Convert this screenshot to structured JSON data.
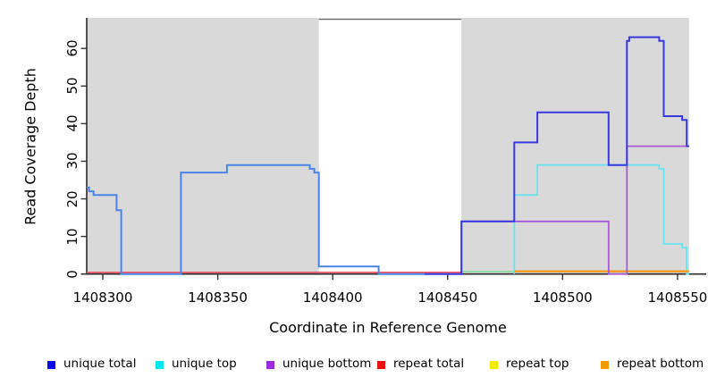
{
  "chart_data": {
    "type": "line",
    "subtype": "step",
    "title": "",
    "xlabel": "Coordinate in Reference Genome",
    "ylabel": "Read Coverage Depth",
    "xlim": [
      1408293,
      1408555
    ],
    "ylim": [
      0,
      67
    ],
    "x_ticks": [
      1408300,
      1408350,
      1408400,
      1408450,
      1408500,
      1408550
    ],
    "y_ticks": [
      0,
      10,
      20,
      30,
      40,
      50,
      60
    ],
    "grid": false,
    "legend_position": "bottom",
    "shading": {
      "color": "#d9d9d9",
      "regions": [
        {
          "from": 1408293,
          "to": 1408394
        },
        {
          "from": 1408456,
          "to": 1408555
        }
      ],
      "unshaded_gap": {
        "from": 1408394,
        "to": 1408456
      }
    },
    "series": [
      {
        "id": "repeat_total",
        "name": "repeat total",
        "legend_color": "#ee1111",
        "points": [
          [
            1408293,
            0
          ],
          [
            1408456,
            0
          ]
        ]
      },
      {
        "id": "repeat_top",
        "name": "repeat top",
        "legend_color": "#f0ee00",
        "points": [
          [
            1408456,
            0
          ],
          [
            1408479,
            0
          ]
        ]
      },
      {
        "id": "unique_top",
        "name": "unique top",
        "legend_color": "#00e6f0",
        "points": [
          [
            1408456,
            0
          ],
          [
            1408479,
            21
          ],
          [
            1408489,
            29
          ],
          [
            1408542,
            28
          ],
          [
            1408544,
            8
          ],
          [
            1408552,
            7
          ],
          [
            1408554,
            0
          ],
          [
            1408555,
            0
          ]
        ]
      },
      {
        "id": "repeat_bottom",
        "name": "repeat bottom",
        "legend_color": "#f49a00",
        "points": [
          [
            1408479,
            0
          ],
          [
            1408555,
            0
          ]
        ]
      },
      {
        "id": "unique_bottom",
        "name": "unique bottom",
        "legend_color": "#9c2ae0",
        "points": [
          [
            1408456,
            0
          ],
          [
            1408456,
            14
          ],
          [
            1408520,
            0
          ],
          [
            1408528,
            34
          ],
          [
            1408555,
            34
          ]
        ]
      },
      {
        "id": "unique_total",
        "name": "unique total",
        "legend_color": "#0a0ae8",
        "points": [
          [
            1408293,
            23
          ],
          [
            1408294,
            22
          ],
          [
            1408296,
            21
          ],
          [
            1408306,
            17
          ],
          [
            1408308,
            0
          ],
          [
            1408334,
            27
          ],
          [
            1408354,
            29
          ],
          [
            1408390,
            28
          ],
          [
            1408392,
            27
          ],
          [
            1408394,
            2
          ],
          [
            1408420,
            0
          ],
          [
            1408456,
            14
          ],
          [
            1408479,
            35
          ],
          [
            1408489,
            43
          ],
          [
            1408520,
            29
          ],
          [
            1408528,
            62
          ],
          [
            1408529,
            63
          ],
          [
            1408542,
            62
          ],
          [
            1408544,
            42
          ],
          [
            1408552,
            41
          ],
          [
            1408554,
            34
          ],
          [
            1408555,
            34
          ]
        ]
      }
    ]
  }
}
